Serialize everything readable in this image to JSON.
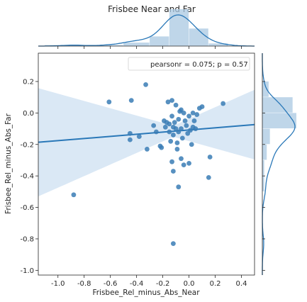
{
  "chart_data": {
    "type": "scatter",
    "title": "Frisbee Near and Far",
    "xlabel": "Frisbee_Rel_minus_Abs_Near",
    "ylabel": "Frisbee_Rel_minus_Abs_Far",
    "xlim": [
      -1.15,
      0.5
    ],
    "ylim": [
      -1.03,
      0.38
    ],
    "xticks": [
      -1.0,
      -0.8,
      -0.6,
      -0.4,
      -0.2,
      0.0,
      0.2,
      0.4
    ],
    "xtick_labels": [
      "-1.0",
      "-0.8",
      "-0.6",
      "-0.4",
      "-0.2",
      "0.0",
      "0.2",
      "0.4"
    ],
    "yticks": [
      -1.0,
      -0.8,
      -0.6,
      -0.4,
      -0.2,
      0.0,
      0.2
    ],
    "ytick_labels": [
      "-1.0",
      "-0.8",
      "-0.6",
      "-0.4",
      "-0.2",
      "0.0",
      "0.2"
    ],
    "annotation": "pearsonr = 0.075; p = 0.57",
    "legend_position": "top-right",
    "grid": false,
    "colors": {
      "points": "#3a7db5",
      "line": "#2a78b8",
      "band": "#c6dbef",
      "hist": "#a9c8e1"
    },
    "regression": {
      "slope": 0.068,
      "intercept": -0.108
    },
    "points": [
      {
        "x": -0.88,
        "y": -0.52
      },
      {
        "x": -0.61,
        "y": 0.07
      },
      {
        "x": -0.44,
        "y": 0.08
      },
      {
        "x": -0.45,
        "y": -0.13
      },
      {
        "x": -0.45,
        "y": -0.17
      },
      {
        "x": -0.38,
        "y": -0.15
      },
      {
        "x": -0.33,
        "y": 0.18
      },
      {
        "x": -0.32,
        "y": -0.23
      },
      {
        "x": -0.27,
        "y": -0.08
      },
      {
        "x": -0.25,
        "y": -0.12
      },
      {
        "x": -0.22,
        "y": -0.21
      },
      {
        "x": -0.21,
        "y": -0.22
      },
      {
        "x": -0.19,
        "y": -0.05
      },
      {
        "x": -0.17,
        "y": -0.06
      },
      {
        "x": -0.16,
        "y": 0.07
      },
      {
        "x": -0.15,
        "y": -0.07
      },
      {
        "x": -0.15,
        "y": -0.12
      },
      {
        "x": -0.14,
        "y": -0.18
      },
      {
        "x": -0.13,
        "y": 0.08
      },
      {
        "x": -0.13,
        "y": -0.02
      },
      {
        "x": -0.12,
        "y": -0.09
      },
      {
        "x": -0.12,
        "y": -0.14
      },
      {
        "x": -0.11,
        "y": -0.06
      },
      {
        "x": -0.1,
        "y": 0.05
      },
      {
        "x": -0.1,
        "y": -0.1
      },
      {
        "x": -0.09,
        "y": -0.19
      },
      {
        "x": -0.09,
        "y": -0.23
      },
      {
        "x": -0.08,
        "y": -0.04
      },
      {
        "x": -0.08,
        "y": -0.12
      },
      {
        "x": -0.07,
        "y": 0.01
      },
      {
        "x": -0.06,
        "y": -0.1
      },
      {
        "x": -0.05,
        "y": -0.16
      },
      {
        "x": -0.04,
        "y": 0.0
      },
      {
        "x": -0.03,
        "y": -0.05
      },
      {
        "x": -0.02,
        "y": -0.08
      },
      {
        "x": -0.01,
        "y": -0.13
      },
      {
        "x": 0.0,
        "y": -0.02
      },
      {
        "x": 0.01,
        "y": -0.11
      },
      {
        "x": 0.02,
        "y": -0.2
      },
      {
        "x": 0.03,
        "y": 0.0
      },
      {
        "x": 0.04,
        "y": -0.05
      },
      {
        "x": 0.05,
        "y": -0.1
      },
      {
        "x": 0.06,
        "y": -0.01
      },
      {
        "x": 0.08,
        "y": 0.03
      },
      {
        "x": 0.1,
        "y": 0.04
      },
      {
        "x": -0.13,
        "y": -0.31
      },
      {
        "x": -0.12,
        "y": -0.37
      },
      {
        "x": -0.06,
        "y": -0.29
      },
      {
        "x": -0.04,
        "y": -0.33
      },
      {
        "x": 0.0,
        "y": -0.32
      },
      {
        "x": -0.08,
        "y": -0.47
      },
      {
        "x": 0.16,
        "y": -0.28
      },
      {
        "x": 0.15,
        "y": -0.41
      },
      {
        "x": 0.26,
        "y": 0.06
      },
      {
        "x": -0.12,
        "y": -0.83
      },
      {
        "x": 0.03,
        "y": -0.09
      },
      {
        "x": -0.18,
        "y": -0.09
      },
      {
        "x": -0.06,
        "y": 0.02
      }
    ],
    "top_hist": {
      "edges": [
        -1.1,
        -0.9,
        -0.7,
        -0.5,
        -0.3,
        -0.15,
        0.0,
        0.15,
        0.3
      ],
      "heights": [
        0.12,
        0.12,
        0.12,
        0.4,
        1.1,
        4.2,
        2.0,
        0.3
      ]
    },
    "right_hist": {
      "edges": [
        -1.0,
        -0.9,
        -0.8,
        -0.7,
        -0.6,
        -0.5,
        -0.4,
        -0.3,
        -0.2,
        -0.1,
        0.0,
        0.1,
        0.2
      ],
      "widths": [
        0.05,
        0.05,
        0.05,
        0.0,
        0.0,
        0.15,
        0.15,
        0.35,
        0.6,
        2.7,
        2.4,
        0.5
      ]
    }
  }
}
